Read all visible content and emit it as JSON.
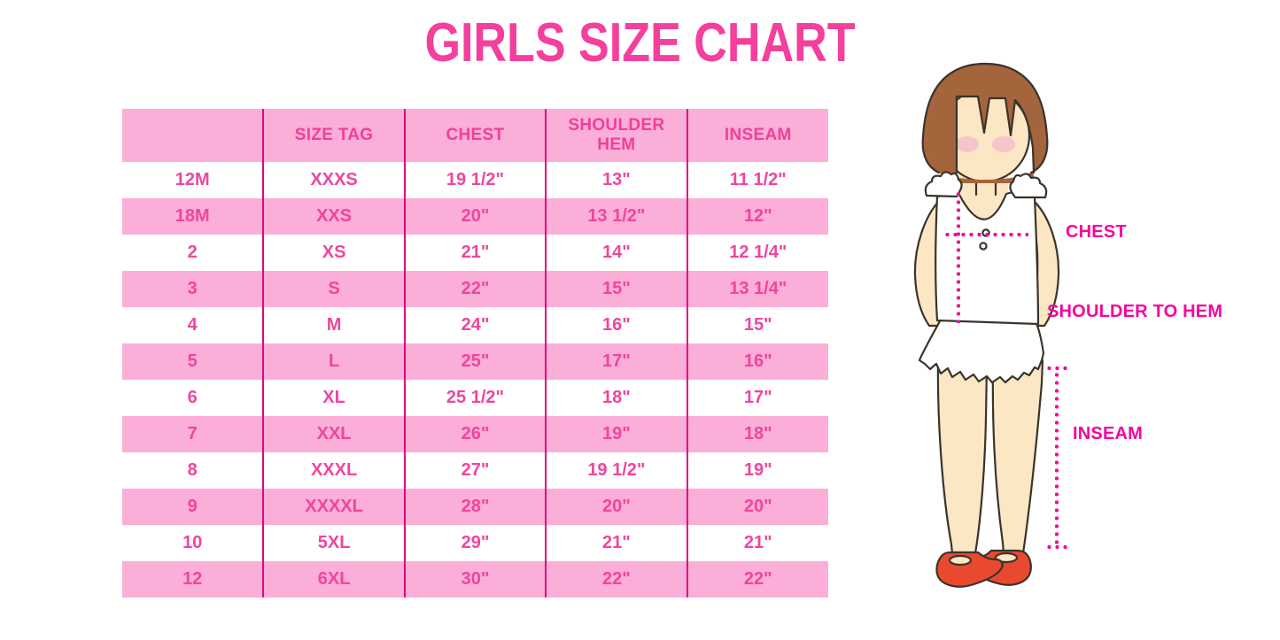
{
  "title": "GIRLS SIZE CHART",
  "chart_data": {
    "type": "table",
    "title": "GIRLS SIZE CHART",
    "columns": [
      "",
      "SIZE TAG",
      "CHEST",
      "SHOULDER HEM",
      "INSEAM"
    ],
    "rows": [
      [
        "12M",
        "XXXS",
        "19 1/2\"",
        "13\"",
        "11 1/2\""
      ],
      [
        "18M",
        "XXS",
        "20\"",
        "13 1/2\"",
        "12\""
      ],
      [
        "2",
        "XS",
        "21\"",
        "14\"",
        "12 1/4\""
      ],
      [
        "3",
        "S",
        "22\"",
        "15\"",
        "13 1/4\""
      ],
      [
        "4",
        "M",
        "24\"",
        "16\"",
        "15\""
      ],
      [
        "5",
        "L",
        "25\"",
        "17\"",
        "16\""
      ],
      [
        "6",
        "XL",
        "25 1/2\"",
        "18\"",
        "17\""
      ],
      [
        "7",
        "XXL",
        "26\"",
        "19\"",
        "18\""
      ],
      [
        "8",
        "XXXL",
        "27\"",
        "19 1/2\"",
        "19\""
      ],
      [
        "9",
        "XXXXL",
        "28\"",
        "20\"",
        "20\""
      ],
      [
        "10",
        "5XL",
        "29\"",
        "21\"",
        "21\""
      ],
      [
        "12",
        "6XL",
        "30\"",
        "22\"",
        "22\""
      ]
    ]
  },
  "figure": {
    "illustration": "cartoon-girl-measurement-figure",
    "labels": {
      "chest": "CHEST",
      "shoulder_to_hem": "SHOULDER TO HEM",
      "inseam": "INSEAM"
    }
  },
  "colors": {
    "title_pink": "#F43F9C",
    "table_text_pink": "#F0459E",
    "row_stripe_pink": "#FBAED7",
    "divider_magenta": "#E3067E",
    "measure_guide_pink": "#F40A9B",
    "hair_brown": "#A4643C",
    "skin": "#FBE7C3",
    "blush": "#F6C0CD",
    "shoe_red": "#E94A2F"
  }
}
